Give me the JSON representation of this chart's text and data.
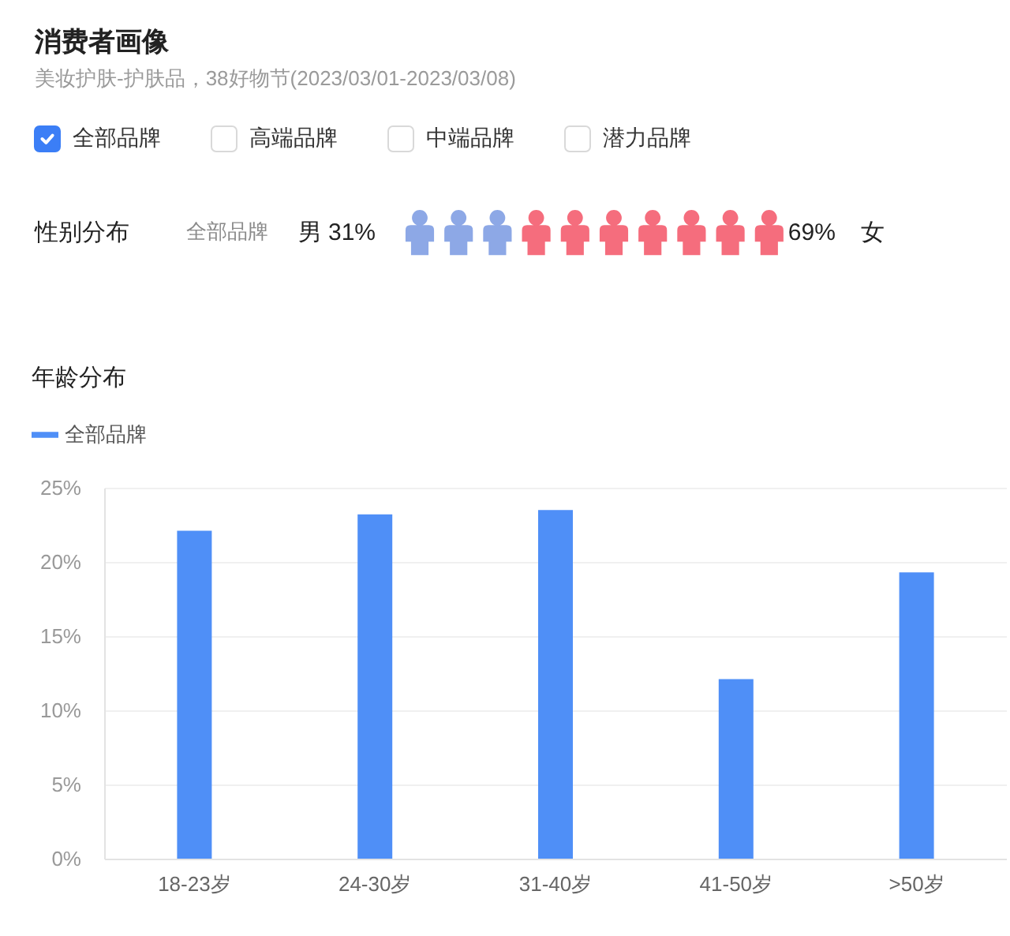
{
  "chart_data": [
    {
      "type": "other",
      "title": "消费者画像",
      "subtitle": "美妆护肤-护肤品，38好物节(2023/03/01-2023/03/08)",
      "categories": [
        "全部品牌",
        "高端品牌",
        "中端品牌",
        "潜力品牌"
      ],
      "colors": [
        "#3b7ef6",
        null,
        null,
        null
      ]
    },
    {
      "type": "other",
      "title": "性别分布",
      "subtitle": "全部品牌",
      "categories": [
        "男",
        "女"
      ],
      "values": [
        31,
        69
      ],
      "value_labels": [
        "31%",
        "69%"
      ],
      "colors": [
        "#8da8e6",
        "#f56d7d"
      ]
    },
    {
      "type": "bar",
      "title": "年龄分布",
      "categories": [
        "18-23岁",
        "24-30岁",
        "31-40岁",
        "41-50岁",
        ">50岁"
      ],
      "series": [
        {
          "name": "全部品牌",
          "color": "#4f8ff7",
          "values": [
            22.1,
            23.2,
            23.5,
            12.1,
            19.3
          ]
        }
      ],
      "ylim": [
        0,
        25
      ],
      "yticks": [
        {
          "value": 0,
          "label": "0%"
        },
        {
          "value": 5,
          "label": "5%"
        },
        {
          "value": 10,
          "label": "10%"
        },
        {
          "value": 15,
          "label": "15%"
        },
        {
          "value": 20,
          "label": "20%"
        },
        {
          "value": 25,
          "label": "25%"
        }
      ],
      "grid": "y",
      "legend": "top left"
    }
  ]
}
